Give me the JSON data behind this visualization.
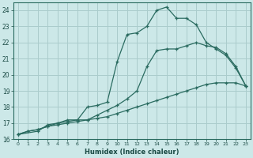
{
  "xlabel": "Humidex (Indice chaleur)",
  "bg_color": "#cce8e8",
  "grid_color": "#aacccc",
  "line_color": "#2a6b60",
  "xlim": [
    -0.5,
    23.5
  ],
  "ylim": [
    16,
    24.5
  ],
  "xticks": [
    0,
    1,
    2,
    3,
    4,
    5,
    6,
    7,
    8,
    9,
    10,
    11,
    12,
    13,
    14,
    15,
    16,
    17,
    18,
    19,
    20,
    21,
    22,
    23
  ],
  "yticks": [
    16,
    17,
    18,
    19,
    20,
    21,
    22,
    23,
    24
  ],
  "series1_x": [
    0,
    1,
    2,
    3,
    4,
    5,
    6,
    7,
    8,
    9,
    10,
    11,
    12,
    13,
    14,
    15,
    16,
    17,
    18,
    19,
    20,
    21,
    22,
    23
  ],
  "series1_y": [
    16.3,
    16.5,
    16.6,
    16.8,
    16.9,
    17.0,
    17.1,
    17.2,
    17.3,
    17.4,
    17.6,
    17.8,
    18.0,
    18.2,
    18.4,
    18.6,
    18.8,
    19.0,
    19.2,
    19.4,
    19.5,
    19.5,
    19.5,
    19.3
  ],
  "series2_x": [
    0,
    1,
    2,
    3,
    4,
    5,
    6,
    7,
    8,
    9,
    10,
    11,
    12,
    13,
    14,
    15,
    16,
    17,
    18,
    19,
    20,
    21,
    22,
    23
  ],
  "series2_y": [
    16.3,
    16.5,
    16.6,
    16.8,
    17.0,
    17.1,
    17.2,
    17.2,
    17.5,
    17.8,
    18.1,
    18.5,
    19.0,
    20.5,
    21.5,
    21.6,
    21.6,
    21.8,
    22.0,
    21.8,
    21.7,
    21.3,
    20.5,
    19.3
  ],
  "series3_x": [
    0,
    2,
    3,
    4,
    5,
    6,
    7,
    8,
    9,
    10,
    11,
    12,
    13,
    14,
    15,
    16,
    17,
    18,
    19,
    20,
    21,
    22,
    23
  ],
  "series3_y": [
    16.3,
    16.5,
    16.9,
    17.0,
    17.2,
    17.2,
    18.0,
    18.1,
    18.3,
    20.8,
    22.5,
    22.6,
    23.0,
    24.0,
    24.2,
    23.5,
    23.5,
    23.1,
    22.0,
    21.6,
    21.2,
    20.4,
    19.3
  ]
}
